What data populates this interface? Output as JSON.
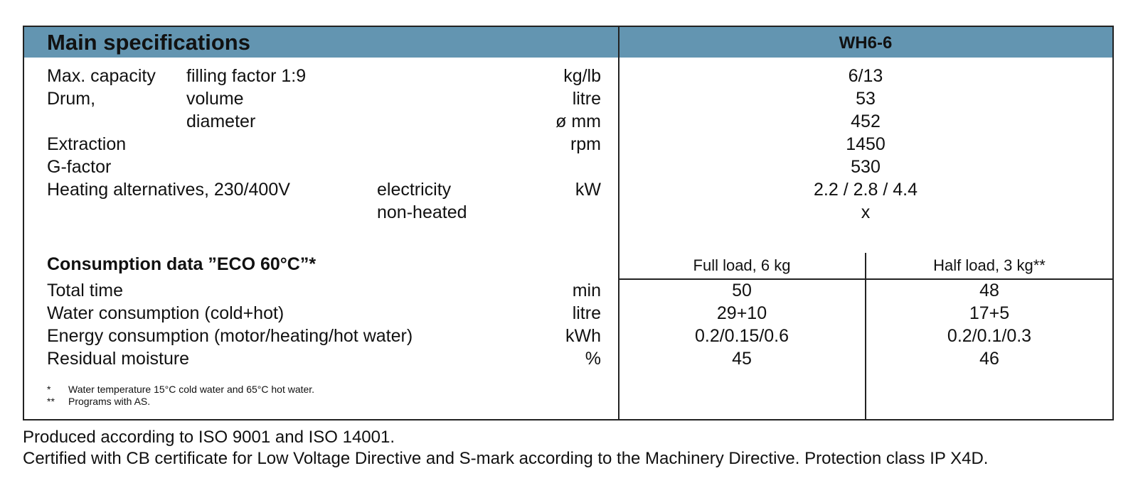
{
  "header": {
    "title": "Main specifications",
    "model": "WH6-6"
  },
  "main_specs": {
    "capacity": {
      "label": "Max. capacity",
      "sub": "filling factor 1:9",
      "unit": "kg/lb",
      "value": "6/13"
    },
    "drum_volume": {
      "label": "Drum,",
      "sub": "volume",
      "unit": "litre",
      "value": "53"
    },
    "drum_diameter": {
      "sub": "diameter",
      "unit": "ø mm",
      "value": "452"
    },
    "extraction": {
      "label": "Extraction",
      "unit": "rpm",
      "value": "1450"
    },
    "g_factor": {
      "label": "G-factor",
      "value": "530"
    },
    "heating_electric": {
      "label": "Heating alternatives, 230/400V",
      "sub": "electricity",
      "unit": "kW",
      "value": "2.2 / 2.8 / 4.4"
    },
    "heating_none": {
      "sub": "non-heated",
      "value": "x"
    }
  },
  "consumption": {
    "title": "Consumption data ”ECO 60°C”*",
    "col_full": "Full load, 6 kg",
    "col_half": "Half load, 3 kg**",
    "rows": [
      {
        "label": "Total time",
        "unit": "min",
        "full": "50",
        "half": "48"
      },
      {
        "label": "Water consumption (cold+hot)",
        "unit": "litre",
        "full": "29+10",
        "half": "17+5"
      },
      {
        "label": "Energy consumption (motor/heating/hot water)",
        "unit": "kWh",
        "full": "0.2/0.15/0.6",
        "half": "0.2/0.1/0.3"
      },
      {
        "label": "Residual moisture",
        "unit": "%",
        "full": "45",
        "half": "46"
      }
    ]
  },
  "footnotes": [
    {
      "mark": "*",
      "text": "Water temperature 15°C cold water and 65°C hot water."
    },
    {
      "mark": "**",
      "text": "Programs with AS."
    }
  ],
  "footer": {
    "line1": "Produced according to ISO 9001 and ISO 14001.",
    "line2": "Certified with CB certificate for Low Voltage Directive and S-mark according to the Machinery Directive. Protection class IP X4D."
  }
}
